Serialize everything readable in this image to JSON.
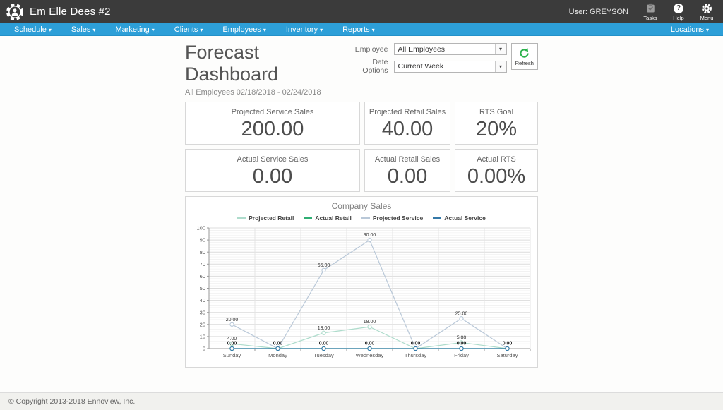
{
  "topbar": {
    "title": "Em Elle Dees #2",
    "user": "User: GREYSON",
    "actions": [
      {
        "label": "Tasks"
      },
      {
        "label": "Help"
      },
      {
        "label": "Menu"
      }
    ]
  },
  "nav": {
    "items": [
      {
        "label": "Schedule"
      },
      {
        "label": "Sales"
      },
      {
        "label": "Marketing"
      },
      {
        "label": "Clients"
      },
      {
        "label": "Employees"
      },
      {
        "label": "Inventory"
      },
      {
        "label": "Reports"
      }
    ],
    "right": {
      "label": "Locations"
    }
  },
  "header": {
    "title": "Forecast Dashboard",
    "subtitle": "All Employees 02/18/2018 - 02/24/2018"
  },
  "controls": {
    "employee_label": "Employee",
    "employee_value": "All Employees",
    "date_label": "Date Options",
    "date_value": "Current Week",
    "refresh_label": "Refresh"
  },
  "cards": [
    {
      "label": "Projected Service Sales",
      "value": "200.00"
    },
    {
      "label": "Projected Retail Sales",
      "value": "40.00"
    },
    {
      "label": "RTS Goal",
      "value": "20%"
    },
    {
      "label": "Actual Service Sales",
      "value": "0.00"
    },
    {
      "label": "Actual Retail Sales",
      "value": "0.00"
    },
    {
      "label": "Actual RTS",
      "value": "0.00%"
    }
  ],
  "chart_data": {
    "type": "line",
    "title": "Company Sales",
    "categories": [
      "Sunday",
      "Monday",
      "Tuesday",
      "Wednesday",
      "Thursday",
      "Friday",
      "Saturday"
    ],
    "series": [
      {
        "name": "Projected Retail",
        "color": "#aedccc",
        "values": [
          4,
          0,
          13,
          18,
          0,
          5,
          0
        ]
      },
      {
        "name": "Actual Retail",
        "color": "#2fae73",
        "values": [
          0,
          0,
          0,
          0,
          0,
          0,
          0
        ]
      },
      {
        "name": "Projected Service",
        "color": "#b9c8d8",
        "values": [
          20,
          0,
          65,
          90,
          0,
          25,
          0
        ]
      },
      {
        "name": "Actual Service",
        "color": "#3579a8",
        "values": [
          0,
          0,
          0,
          0,
          0,
          0,
          0
        ]
      }
    ],
    "ylim": [
      0,
      100
    ],
    "ytick_step": 10,
    "grid": true,
    "legend_position": "top",
    "point_labels": true
  },
  "footer": {
    "copyright": "© Copyright 2013-2018 Ennoview, Inc."
  },
  "icons": {
    "caret_down": "▾"
  },
  "colors": {
    "topbar_bg": "#3b3b3b",
    "nav_bg": "#2d9fd8",
    "refresh_green": "#2bb24c",
    "card_border": "#d8d8d8"
  }
}
